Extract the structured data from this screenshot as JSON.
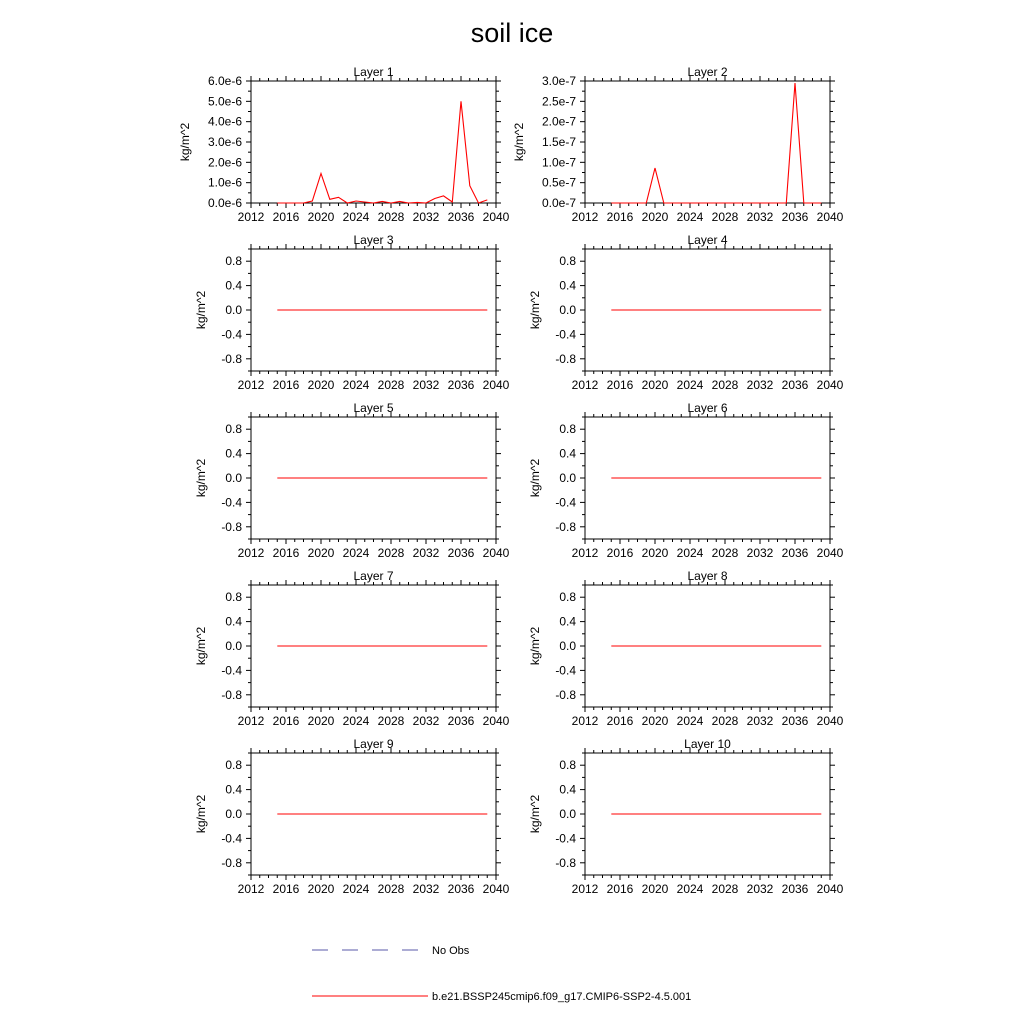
{
  "figure": {
    "title": "soil ice"
  },
  "chart_data": [
    {
      "type": "line",
      "title": "Layer 1",
      "ylabel": "kg/m^2",
      "xlim": [
        2012,
        2040
      ],
      "ylim": [
        0,
        6e-06
      ],
      "xticks": [
        2012,
        2016,
        2020,
        2024,
        2028,
        2032,
        2036,
        2040
      ],
      "yticks": [
        0,
        1e-06,
        2e-06,
        3e-06,
        4e-06,
        5e-06,
        6e-06
      ],
      "ytick_labels": [
        "0.0e-6",
        "1.0e-6",
        "2.0e-6",
        "3.0e-6",
        "4.0e-6",
        "5.0e-6",
        "6.0e-6"
      ],
      "series": [
        {
          "x": [
            2015,
            2016,
            2017,
            2018,
            2019,
            2020,
            2021,
            2022,
            2023,
            2024,
            2025,
            2026,
            2027,
            2028,
            2029,
            2030,
            2031,
            2032,
            2033,
            2034,
            2035,
            2036,
            2037,
            2038,
            2039
          ],
          "y": [
            0,
            0,
            0,
            0,
            1e-07,
            1.45e-06,
            1.8e-07,
            2.8e-07,
            0,
            1e-07,
            5e-08,
            0,
            8e-08,
            0,
            8e-08,
            0,
            3e-08,
            0,
            2.2e-07,
            3.5e-07,
            5e-08,
            5e-06,
            8.5e-07,
            0,
            1.5e-07
          ]
        }
      ]
    },
    {
      "type": "line",
      "title": "Layer 2",
      "ylabel": "kg/m^2",
      "xlim": [
        2012,
        2040
      ],
      "ylim": [
        0,
        3e-07
      ],
      "xticks": [
        2012,
        2016,
        2020,
        2024,
        2028,
        2032,
        2036,
        2040
      ],
      "yticks": [
        0,
        5e-08,
        1e-07,
        1.5e-07,
        2e-07,
        2.5e-07,
        3e-07
      ],
      "ytick_labels": [
        "0.0e-7",
        "0.5e-7",
        "1.0e-7",
        "1.5e-7",
        "2.0e-7",
        "2.5e-7",
        "3.0e-7"
      ],
      "series": [
        {
          "x": [
            2015,
            2016,
            2017,
            2018,
            2019,
            2020,
            2021,
            2022,
            2023,
            2024,
            2025,
            2026,
            2027,
            2028,
            2029,
            2030,
            2031,
            2032,
            2033,
            2034,
            2035,
            2036,
            2037,
            2038,
            2039
          ],
          "y": [
            0,
            0,
            0,
            0,
            0,
            8.6e-08,
            0,
            0,
            0,
            0,
            0,
            0,
            0,
            0,
            0,
            0,
            0,
            0,
            0,
            0,
            0,
            2.95e-07,
            0,
            0,
            0
          ]
        }
      ]
    },
    {
      "type": "line",
      "title": "Layer 3",
      "ylabel": "kg/m^2",
      "xlim": [
        2012,
        2040
      ],
      "ylim": [
        -1,
        1
      ],
      "xticks": [
        2012,
        2016,
        2020,
        2024,
        2028,
        2032,
        2036,
        2040
      ],
      "yticks": [
        -0.8,
        -0.4,
        0,
        0.4,
        0.8
      ],
      "ytick_labels": [
        "-0.8",
        "-0.4",
        "0.0",
        "0.4",
        "0.8"
      ],
      "series": [
        {
          "x": [
            2015,
            2039
          ],
          "y": [
            0,
            0
          ]
        }
      ]
    },
    {
      "type": "line",
      "title": "Layer 4",
      "ylabel": "kg/m^2",
      "xlim": [
        2012,
        2040
      ],
      "ylim": [
        -1,
        1
      ],
      "xticks": [
        2012,
        2016,
        2020,
        2024,
        2028,
        2032,
        2036,
        2040
      ],
      "yticks": [
        -0.8,
        -0.4,
        0,
        0.4,
        0.8
      ],
      "ytick_labels": [
        "-0.8",
        "-0.4",
        "0.0",
        "0.4",
        "0.8"
      ],
      "series": [
        {
          "x": [
            2015,
            2039
          ],
          "y": [
            0,
            0
          ]
        }
      ]
    },
    {
      "type": "line",
      "title": "Layer 5",
      "ylabel": "kg/m^2",
      "xlim": [
        2012,
        2040
      ],
      "ylim": [
        -1,
        1
      ],
      "xticks": [
        2012,
        2016,
        2020,
        2024,
        2028,
        2032,
        2036,
        2040
      ],
      "yticks": [
        -0.8,
        -0.4,
        0,
        0.4,
        0.8
      ],
      "ytick_labels": [
        "-0.8",
        "-0.4",
        "0.0",
        "0.4",
        "0.8"
      ],
      "series": [
        {
          "x": [
            2015,
            2039
          ],
          "y": [
            0,
            0
          ]
        }
      ]
    },
    {
      "type": "line",
      "title": "Layer 6",
      "ylabel": "kg/m^2",
      "xlim": [
        2012,
        2040
      ],
      "ylim": [
        -1,
        1
      ],
      "xticks": [
        2012,
        2016,
        2020,
        2024,
        2028,
        2032,
        2036,
        2040
      ],
      "yticks": [
        -0.8,
        -0.4,
        0,
        0.4,
        0.8
      ],
      "ytick_labels": [
        "-0.8",
        "-0.4",
        "0.0",
        "0.4",
        "0.8"
      ],
      "series": [
        {
          "x": [
            2015,
            2039
          ],
          "y": [
            0,
            0
          ]
        }
      ]
    },
    {
      "type": "line",
      "title": "Layer 7",
      "ylabel": "kg/m^2",
      "xlim": [
        2012,
        2040
      ],
      "ylim": [
        -1,
        1
      ],
      "xticks": [
        2012,
        2016,
        2020,
        2024,
        2028,
        2032,
        2036,
        2040
      ],
      "yticks": [
        -0.8,
        -0.4,
        0,
        0.4,
        0.8
      ],
      "ytick_labels": [
        "-0.8",
        "-0.4",
        "0.0",
        "0.4",
        "0.8"
      ],
      "series": [
        {
          "x": [
            2015,
            2039
          ],
          "y": [
            0,
            0
          ]
        }
      ]
    },
    {
      "type": "line",
      "title": "Layer 8",
      "ylabel": "kg/m^2",
      "xlim": [
        2012,
        2040
      ],
      "ylim": [
        -1,
        1
      ],
      "xticks": [
        2012,
        2016,
        2020,
        2024,
        2028,
        2032,
        2036,
        2040
      ],
      "yticks": [
        -0.8,
        -0.4,
        0,
        0.4,
        0.8
      ],
      "ytick_labels": [
        "-0.8",
        "-0.4",
        "0.0",
        "0.4",
        "0.8"
      ],
      "series": [
        {
          "x": [
            2015,
            2039
          ],
          "y": [
            0,
            0
          ]
        }
      ]
    },
    {
      "type": "line",
      "title": "Layer 9",
      "ylabel": "kg/m^2",
      "xlim": [
        2012,
        2040
      ],
      "ylim": [
        -1,
        1
      ],
      "xticks": [
        2012,
        2016,
        2020,
        2024,
        2028,
        2032,
        2036,
        2040
      ],
      "yticks": [
        -0.8,
        -0.4,
        0,
        0.4,
        0.8
      ],
      "ytick_labels": [
        "-0.8",
        "-0.4",
        "0.0",
        "0.4",
        "0.8"
      ],
      "series": [
        {
          "x": [
            2015,
            2039
          ],
          "y": [
            0,
            0
          ]
        }
      ]
    },
    {
      "type": "line",
      "title": "Layer 10",
      "ylabel": "kg/m^2",
      "xlim": [
        2012,
        2040
      ],
      "ylim": [
        -1,
        1
      ],
      "xticks": [
        2012,
        2016,
        2020,
        2024,
        2028,
        2032,
        2036,
        2040
      ],
      "yticks": [
        -0.8,
        -0.4,
        0,
        0.4,
        0.8
      ],
      "ytick_labels": [
        "-0.8",
        "-0.4",
        "0.0",
        "0.4",
        "0.8"
      ],
      "series": [
        {
          "x": [
            2015,
            2039
          ],
          "y": [
            0,
            0
          ]
        }
      ]
    }
  ],
  "legend": {
    "placement": "bottom",
    "entries": [
      {
        "label": "No Obs",
        "color": "#5a5aa8",
        "style": "dashed"
      },
      {
        "label": "b.e21.BSSP245cmip6.f09_g17.CMIP6-SSP2-4.5.001",
        "color": "#ff0000",
        "style": "solid"
      }
    ]
  },
  "colors": {
    "model_line": "#ff0000",
    "obs_line": "#5a5aa8",
    "axes": "#000000"
  }
}
